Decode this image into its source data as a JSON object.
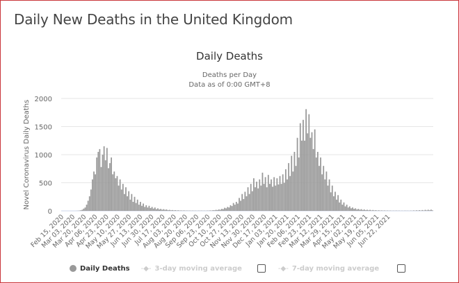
{
  "page_title": "Daily New Deaths in the United Kingdom",
  "colors": {
    "bar": "#999999",
    "border": "#c9353a",
    "grid": "#e6e6e6"
  },
  "chart_data": {
    "type": "bar",
    "title": "Daily Deaths",
    "subtitle": [
      "Deaths per Day",
      "Data as of 0:00 GMT+8"
    ],
    "ylabel": "Novel Coronavirus Daily Deaths",
    "xlabel": "",
    "ylim": [
      0,
      2000
    ],
    "yticks": [
      0,
      500,
      1000,
      1500,
      2000
    ],
    "grid": true,
    "legend_position": "bottom",
    "x_start": "Feb 15, 2020",
    "x_step_days": 2,
    "xtick_labels": [
      "Feb 15, 2020",
      "Mar 03, 2020",
      "Mar 20, 2020",
      "Apr 06, 2020",
      "Apr 23, 2020",
      "May 10, 2020",
      "May 27, 2020",
      "Jun 13, 2020",
      "Jun 30, 2020",
      "Jul 17, 2020",
      "Aug 03, 2020",
      "Aug 20, 2020",
      "Sep 06, 2020",
      "Sep 23, 2020",
      "Oct 10, 2020",
      "Oct 27, 2020",
      "Nov 13, 2020",
      "Nov 30, 2020",
      "Dec 17, 2020",
      "Jan 03, 2021",
      "Jan 20, 2021",
      "Feb 06, 2021",
      "Feb 23, 2021",
      "Mar 12, 2021",
      "Mar 29, 2021",
      "Apr 15, 2021",
      "May 02, 2021",
      "May 19, 2021",
      "Jun 05, 2021",
      "Jun 22, 2021"
    ],
    "series": [
      {
        "name": "Daily Deaths",
        "values": [
          0,
          0,
          0,
          0,
          0,
          0,
          0,
          0,
          0,
          0,
          1,
          2,
          5,
          10,
          20,
          40,
          60,
          110,
          180,
          260,
          380,
          560,
          700,
          650,
          950,
          1050,
          1100,
          780,
          1000,
          1150,
          900,
          1120,
          760,
          850,
          950,
          650,
          700,
          580,
          620,
          450,
          560,
          380,
          480,
          300,
          420,
          260,
          350,
          200,
          300,
          160,
          250,
          140,
          200,
          110,
          160,
          90,
          130,
          70,
          100,
          60,
          90,
          50,
          70,
          40,
          60,
          30,
          45,
          25,
          35,
          20,
          30,
          18,
          25,
          12,
          18,
          10,
          14,
          8,
          12,
          7,
          10,
          6,
          8,
          5,
          8,
          4,
          6,
          4,
          5,
          3,
          5,
          3,
          4,
          2,
          4,
          3,
          5,
          3,
          4,
          2,
          5,
          4,
          8,
          6,
          12,
          10,
          18,
          14,
          25,
          20,
          35,
          30,
          55,
          45,
          70,
          60,
          100,
          85,
          140,
          110,
          160,
          130,
          230,
          180,
          300,
          210,
          340,
          260,
          420,
          300,
          480,
          350,
          580,
          420,
          520,
          400,
          560,
          450,
          680,
          480,
          600,
          420,
          640,
          480,
          560,
          430,
          600,
          450,
          580,
          470,
          620,
          480,
          650,
          500,
          740,
          560,
          850,
          620,
          980,
          700,
          1050,
          800,
          1300,
          950,
          1560,
          1250,
          1620,
          1250,
          1810,
          1380,
          1720,
          1300,
          1400,
          1100,
          1450,
          950,
          1050,
          800,
          950,
          650,
          800,
          560,
          700,
          450,
          560,
          330,
          450,
          260,
          340,
          200,
          280,
          150,
          200,
          110,
          150,
          80,
          110,
          60,
          80,
          45,
          60,
          35,
          45,
          25,
          35,
          20,
          30,
          15,
          25,
          12,
          20,
          10,
          18,
          8,
          15,
          7,
          12,
          5,
          10,
          5,
          8,
          4,
          7,
          3,
          6,
          3,
          5,
          2,
          4,
          2,
          5,
          2,
          4,
          1,
          3,
          1,
          4,
          2,
          3,
          1,
          5,
          2,
          8,
          3,
          10,
          4,
          12,
          5,
          14,
          6,
          18,
          8,
          20,
          10,
          22,
          9
        ]
      }
    ]
  },
  "legend": {
    "items": [
      {
        "label": "Daily Deaths",
        "active": true
      },
      {
        "label": "3-day moving average",
        "active": false
      },
      {
        "label": "7-day moving average",
        "active": false
      }
    ]
  }
}
